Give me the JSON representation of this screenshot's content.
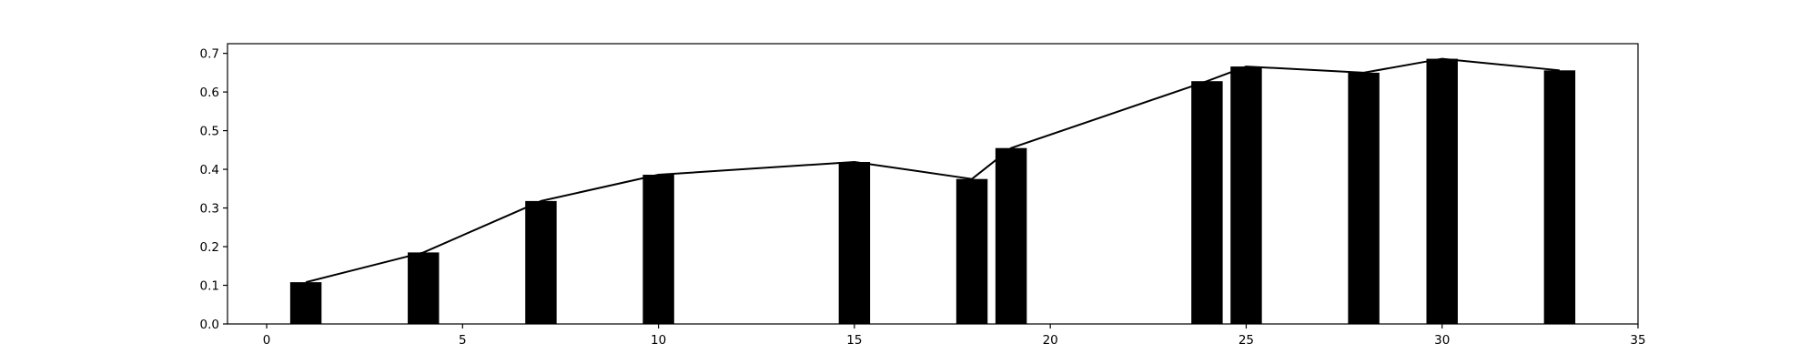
{
  "chart_data": {
    "type": "bar",
    "title": "",
    "xlabel": "",
    "ylabel": "",
    "xlim": [
      -1,
      35
    ],
    "ylim": [
      0,
      0.725
    ],
    "grid": false,
    "legend": "none",
    "x": [
      1,
      4,
      7,
      10,
      15,
      18,
      19,
      24,
      25,
      28,
      30,
      33
    ],
    "values": [
      0.108,
      0.185,
      0.318,
      0.386,
      0.419,
      0.375,
      0.455,
      0.628,
      0.666,
      0.65,
      0.686,
      0.656
    ],
    "bar_width": 0.8,
    "line_overlay": true,
    "x_ticks": [
      0,
      5,
      10,
      15,
      20,
      25,
      30,
      35
    ],
    "y_ticks": [
      0.0,
      0.1,
      0.2,
      0.3,
      0.4,
      0.5,
      0.6,
      0.7
    ],
    "x_tick_labels": [
      "0",
      "5",
      "10",
      "15",
      "20",
      "25",
      "30",
      "35"
    ],
    "y_tick_labels": [
      "0.0",
      "0.1",
      "0.2",
      "0.3",
      "0.4",
      "0.5",
      "0.6",
      "0.7"
    ],
    "colors": {
      "bar": "#000000",
      "line": "#000000",
      "axes": "#000000"
    }
  }
}
